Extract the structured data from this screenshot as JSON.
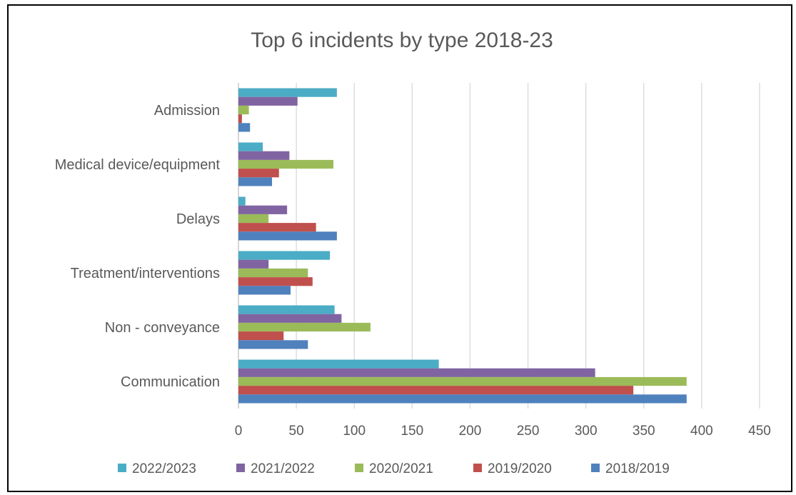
{
  "chart_data": {
    "type": "bar",
    "orientation": "horizontal",
    "title": "Top 6 incidents by type 2018-23",
    "xlabel": "",
    "ylabel": "",
    "xlim": [
      0,
      450
    ],
    "ticks": [
      0,
      50,
      100,
      150,
      200,
      250,
      300,
      350,
      400,
      450
    ],
    "grid": "vertical",
    "legend_position": "bottom",
    "categories": [
      "Admission",
      "Medical device/equipment",
      "Delays ",
      "Treatment/interventions",
      "Non - conveyance",
      "Communication"
    ],
    "series": [
      {
        "name": "2022/2023",
        "color": "#4BACC6",
        "values": [
          85,
          21,
          6,
          79,
          83,
          173
        ]
      },
      {
        "name": "2021/2022",
        "color": "#8064A2",
        "values": [
          51,
          44,
          42,
          26,
          89,
          308
        ]
      },
      {
        "name": "2020/2021",
        "color": "#9BBB59",
        "values": [
          9,
          82,
          26,
          60,
          114,
          387
        ]
      },
      {
        "name": "2019/2020",
        "color": "#C0504D",
        "values": [
          3,
          35,
          67,
          64,
          39,
          341
        ]
      },
      {
        "name": "2018/2019",
        "color": "#4F81BD",
        "values": [
          10,
          29,
          85,
          45,
          60,
          387
        ]
      }
    ]
  }
}
